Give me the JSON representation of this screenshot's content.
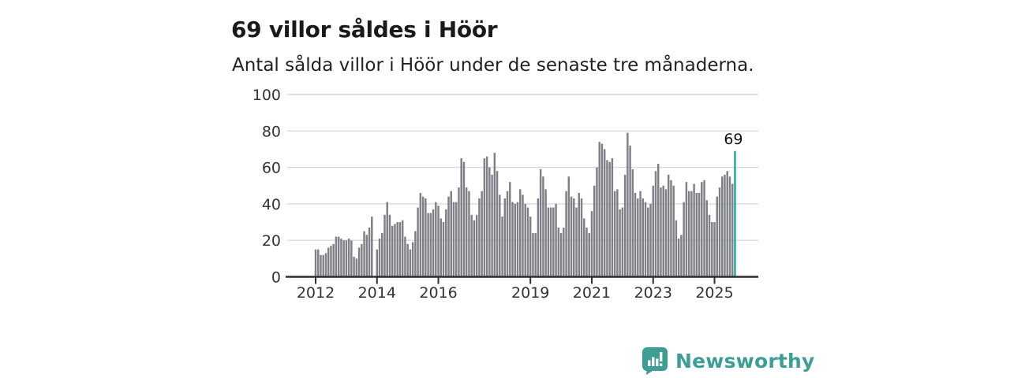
{
  "header": {
    "title": "69 villor såldes i Höör",
    "subtitle": "Antal sålda villor i Höör under de senaste tre månaderna."
  },
  "chart_data": {
    "type": "bar",
    "title": "69 villor såldes i Höör",
    "subtitle": "Antal sålda villor i Höör under de senaste tre månaderna.",
    "x_start": "2012-01",
    "x_end": "2025-09",
    "x_frequency": "monthly",
    "ylim": [
      0,
      100
    ],
    "yticks": [
      0,
      20,
      40,
      60,
      80,
      100
    ],
    "xticks": [
      2012,
      2014,
      2016,
      2019,
      2021,
      2023,
      2025
    ],
    "grid": true,
    "series": [
      {
        "name": "Antal sålda villor (rullande tre månader)",
        "values": [
          15,
          15,
          12,
          12,
          13,
          16,
          17,
          18,
          22,
          22,
          21,
          20,
          20,
          21,
          20,
          11,
          10,
          16,
          18,
          25,
          23,
          27,
          33,
          0,
          15,
          21,
          24,
          34,
          41,
          34,
          28,
          29,
          30,
          30,
          31,
          22,
          18,
          15,
          19,
          25,
          38,
          46,
          44,
          43,
          35,
          35,
          37,
          41,
          39,
          32,
          30,
          37,
          44,
          47,
          41,
          41,
          49,
          65,
          63,
          49,
          47,
          34,
          31,
          34,
          43,
          47,
          65,
          66,
          60,
          56,
          68,
          58,
          45,
          33,
          43,
          47,
          52,
          41,
          40,
          41,
          48,
          45,
          40,
          38,
          33,
          24,
          24,
          43,
          59,
          55,
          48,
          38,
          38,
          38,
          40,
          27,
          24,
          27,
          47,
          55,
          44,
          43,
          38,
          46,
          43,
          32,
          27,
          24,
          36,
          50,
          60,
          74,
          73,
          70,
          64,
          63,
          65,
          47,
          48,
          37,
          38,
          56,
          79,
          72,
          59,
          46,
          43,
          47,
          43,
          41,
          38,
          40,
          50,
          58,
          62,
          49,
          50,
          48,
          56,
          53,
          50,
          31,
          21,
          23,
          41,
          52,
          47,
          47,
          51,
          46,
          46,
          52,
          53,
          42,
          34,
          30,
          30,
          44,
          49,
          55,
          56,
          58,
          55,
          51,
          69
        ]
      }
    ],
    "highlight": {
      "index": 164,
      "value": 69,
      "label": "69"
    },
    "colors": {
      "bar": "#7f7f87",
      "highlight": "#1ca9a1",
      "grid": "#d9d9d9",
      "axis": "#2f2f2f",
      "tick_label": "#333333",
      "annotation": "#111111"
    }
  },
  "branding": {
    "logo_text": "Newsworthy",
    "logo_color": "#3d9e96",
    "logo_icon": "newsworthy-speech-bubble-bars-icon"
  }
}
